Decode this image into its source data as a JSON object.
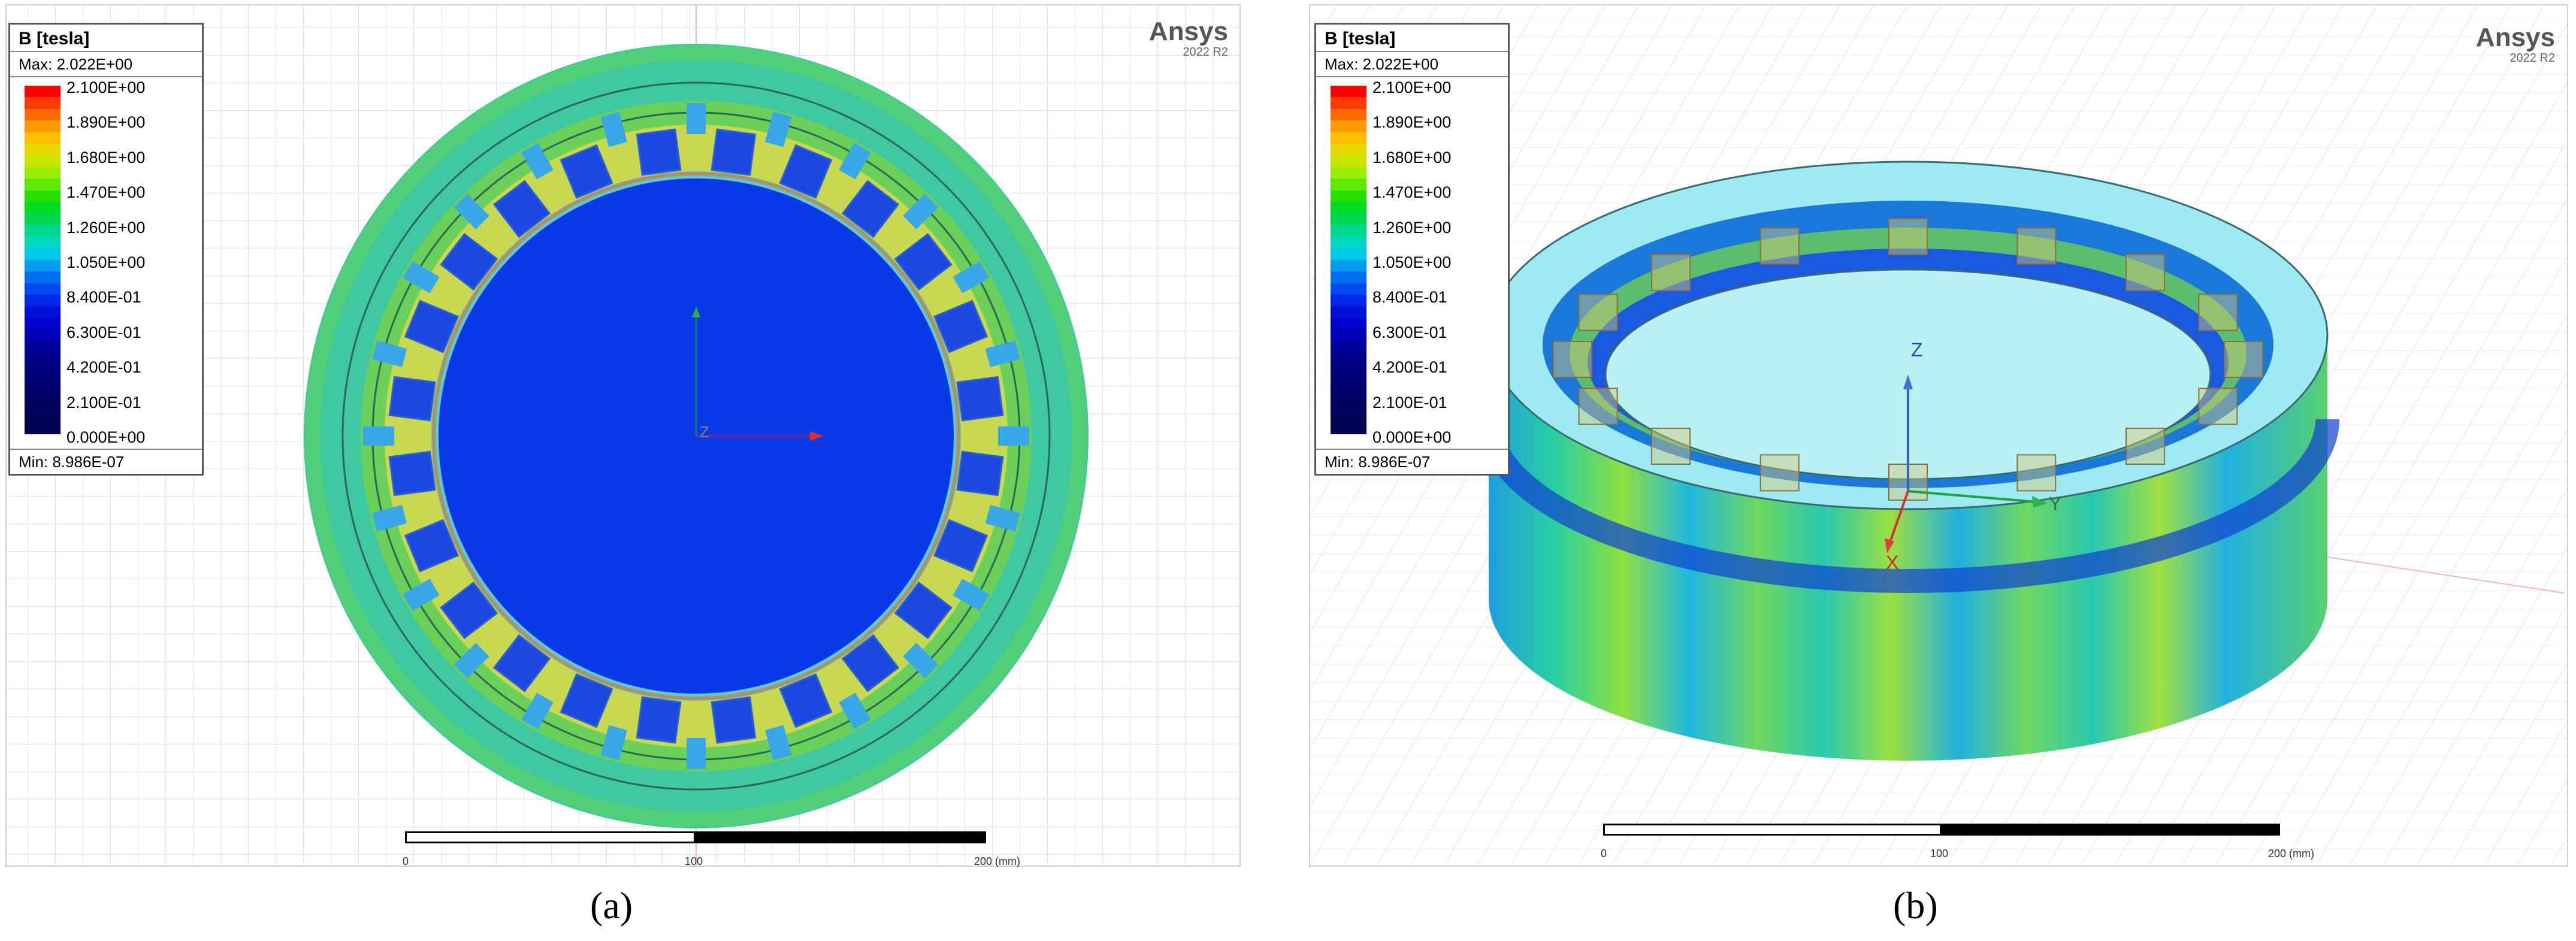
{
  "legend": {
    "title": "B [tesla]",
    "max": "Max: 2.022E+00",
    "min": "Min: 8.986E-07",
    "ticks": [
      "2.100E+00",
      "1.890E+00",
      "1.680E+00",
      "1.470E+00",
      "1.260E+00",
      "1.050E+00",
      "8.400E-01",
      "6.300E-01",
      "4.200E-01",
      "2.100E-01",
      "0.000E+00"
    ],
    "colors": [
      "#ff0000",
      "#ff3a00",
      "#ff6a00",
      "#ff9a00",
      "#ffbf00",
      "#e6d800",
      "#c8e600",
      "#9cee00",
      "#5fe800",
      "#28e000",
      "#00dd20",
      "#00d850",
      "#00d88c",
      "#00d8c0",
      "#00c8e6",
      "#009cf0",
      "#0070f0",
      "#0048f0",
      "#0028e8",
      "#0010d8",
      "#0000cc",
      "#0000b8",
      "#00009c",
      "#000088",
      "#00007a",
      "#000070",
      "#000066",
      "#00005c",
      "#000055",
      "#00004f"
    ]
  },
  "ansys": {
    "brand": "Ansys",
    "version": "2022 R2"
  },
  "scale": {
    "l0": "0",
    "l1": "100",
    "l2": "200 (mm)"
  },
  "axes": {
    "z": "Z",
    "y": "Y",
    "x": "X"
  },
  "captions": {
    "a": "(a)",
    "b": "(b)"
  }
}
